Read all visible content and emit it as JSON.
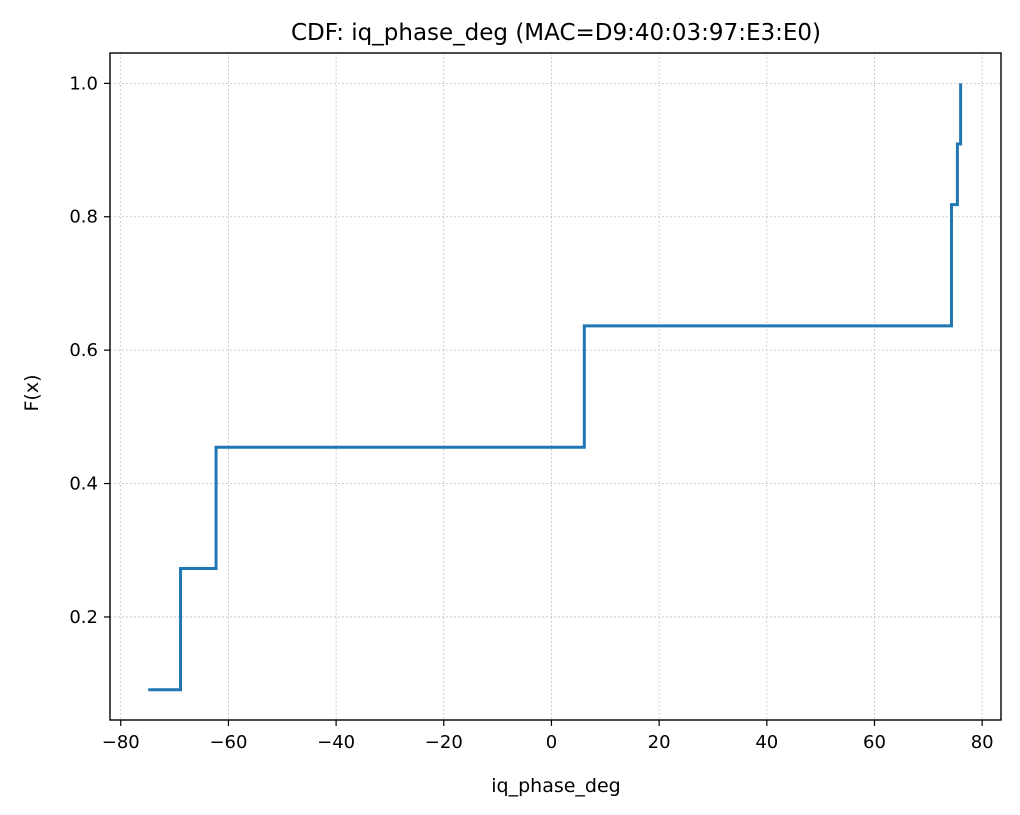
{
  "chart_data": {
    "type": "line",
    "drawstyle": "steps-post",
    "title": "CDF: iq_phase_deg (MAC=D9:40:03:97:E3:E0)",
    "xlabel": "iq_phase_deg",
    "ylabel": "F(x)",
    "xlim": [
      -82,
      83.5
    ],
    "ylim": [
      0.0455,
      1.0455
    ],
    "xticks": [
      -80,
      -60,
      -40,
      -20,
      0,
      20,
      40,
      60,
      80
    ],
    "xtick_labels": [
      "−80",
      "−60",
      "−40",
      "−20",
      "0",
      "20",
      "40",
      "60",
      "80"
    ],
    "yticks": [
      0.2,
      0.4,
      0.6,
      0.8,
      1.0
    ],
    "ytick_labels": [
      "0.2",
      "0.4",
      "0.6",
      "0.8",
      "1.0"
    ],
    "grid": true,
    "series": [
      {
        "color": "#1f77b4",
        "x": [
          -74.9,
          -68.9,
          -62.3,
          6.1,
          74.3,
          75.4,
          76.0
        ],
        "y": [
          0.0909,
          0.2727,
          0.4545,
          0.6364,
          0.8182,
          0.9091,
          1.0
        ]
      }
    ]
  }
}
